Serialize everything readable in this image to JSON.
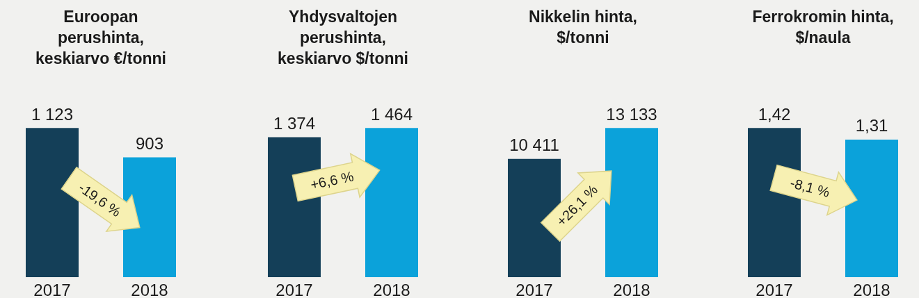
{
  "chart_data": [
    {
      "type": "bar",
      "title": "Euroopan\nperushinta,\nkeskiarvo €/tonni",
      "categories": [
        "2017",
        "2018"
      ],
      "values": [
        1123,
        903
      ],
      "colors": [
        "#143f58",
        "#0ba2da"
      ],
      "value_labels": [
        "1 123",
        "903"
      ],
      "annotations": [
        "-19,6 %"
      ]
    },
    {
      "type": "bar",
      "title": "Yhdysvaltojen\nperushinta,\nkeskiarvo $/tonni",
      "categories": [
        "2017",
        "2018"
      ],
      "values": [
        1374,
        1464
      ],
      "colors": [
        "#143f58",
        "#0ba2da"
      ],
      "value_labels": [
        "1 374",
        "1 464"
      ],
      "annotations": [
        "+6,6 %"
      ]
    },
    {
      "type": "bar",
      "title": "Nikkelin hinta,\n$/tonni",
      "categories": [
        "2017",
        "2018"
      ],
      "values": [
        10411,
        13133
      ],
      "colors": [
        "#143f58",
        "#0ba2da"
      ],
      "value_labels": [
        "10 411",
        "13 133"
      ],
      "annotations": [
        "+26,1 %"
      ]
    },
    {
      "type": "bar",
      "title": "Ferrokromin hinta,\n$/naula",
      "categories": [
        "2017",
        "2018"
      ],
      "values": [
        1.42,
        1.31
      ],
      "colors": [
        "#143f58",
        "#0ba2da"
      ],
      "value_labels": [
        "1,42",
        "1,31"
      ],
      "annotations": [
        "-8,1 %"
      ]
    }
  ]
}
